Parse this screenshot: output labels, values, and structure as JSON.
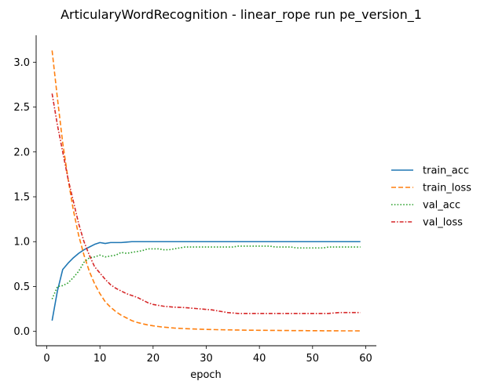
{
  "chart_data": {
    "type": "line",
    "title": "ArticularyWordRecognition - linear_rope run pe_version_1",
    "xlabel": "epoch",
    "ylabel": "",
    "xlim": [
      -2.0,
      62.0
    ],
    "ylim": [
      -0.16,
      3.3
    ],
    "xticks": [
      0,
      10,
      20,
      30,
      40,
      50,
      60
    ],
    "yticks": [
      0.0,
      0.5,
      1.0,
      1.5,
      2.0,
      2.5,
      3.0
    ],
    "xtick_labels": [
      "0",
      "10",
      "20",
      "30",
      "40",
      "50",
      "60"
    ],
    "ytick_labels": [
      "0.0",
      "0.5",
      "1.0",
      "1.5",
      "2.0",
      "2.5",
      "3.0"
    ],
    "legend_position": "right",
    "grid": false,
    "series": [
      {
        "name": "train_acc",
        "color": "#1f77b4",
        "dash": "solid",
        "x": [
          1,
          2,
          3,
          4,
          5,
          6,
          7,
          8,
          9,
          10,
          11,
          12,
          13,
          14,
          15,
          16,
          17,
          18,
          19,
          20,
          21,
          22,
          23,
          24,
          25,
          26,
          27,
          28,
          29,
          30,
          31,
          32,
          33,
          34,
          35,
          36,
          37,
          38,
          39,
          40,
          41,
          42,
          43,
          44,
          45,
          46,
          47,
          48,
          49,
          50,
          51,
          52,
          53,
          54,
          55,
          56,
          57,
          58,
          59
        ],
        "values": [
          0.12,
          0.45,
          0.69,
          0.76,
          0.82,
          0.87,
          0.91,
          0.94,
          0.97,
          0.99,
          0.98,
          0.99,
          0.99,
          0.99,
          0.995,
          1.0,
          1.0,
          1.0,
          1.0,
          1.0,
          1.0,
          1.0,
          1.0,
          1.0,
          1.0,
          1.0,
          1.0,
          1.0,
          1.0,
          1.0,
          1.0,
          1.0,
          1.0,
          1.0,
          1.0,
          1.0,
          1.0,
          1.0,
          1.0,
          1.0,
          1.0,
          1.0,
          1.0,
          1.0,
          1.0,
          1.0,
          1.0,
          1.0,
          1.0,
          1.0,
          1.0,
          1.0,
          1.0,
          1.0,
          1.0,
          1.0,
          1.0,
          1.0,
          1.0
        ]
      },
      {
        "name": "train_loss",
        "color": "#ff7f0e",
        "dash": "dashed",
        "x": [
          1,
          2,
          3,
          4,
          5,
          6,
          7,
          8,
          9,
          10,
          11,
          12,
          13,
          14,
          15,
          16,
          17,
          18,
          19,
          20,
          21,
          22,
          23,
          24,
          25,
          26,
          27,
          28,
          29,
          30,
          31,
          32,
          33,
          34,
          35,
          36,
          37,
          38,
          39,
          40,
          41,
          42,
          43,
          44,
          45,
          46,
          47,
          48,
          49,
          50,
          51,
          52,
          53,
          54,
          55,
          56,
          57,
          58,
          59
        ],
        "values": [
          3.13,
          2.6,
          2.1,
          1.7,
          1.35,
          1.07,
          0.85,
          0.67,
          0.53,
          0.42,
          0.33,
          0.27,
          0.22,
          0.18,
          0.15,
          0.12,
          0.1,
          0.085,
          0.072,
          0.062,
          0.054,
          0.047,
          0.042,
          0.037,
          0.034,
          0.031,
          0.028,
          0.026,
          0.024,
          0.022,
          0.021,
          0.019,
          0.018,
          0.017,
          0.016,
          0.015,
          0.014,
          0.013,
          0.013,
          0.012,
          0.012,
          0.011,
          0.011,
          0.01,
          0.01,
          0.009,
          0.009,
          0.009,
          0.008,
          0.008,
          0.008,
          0.007,
          0.007,
          0.007,
          0.006,
          0.006,
          0.006,
          0.006,
          0.005
        ]
      },
      {
        "name": "val_acc",
        "color": "#2ca02c",
        "dash": "dotted",
        "x": [
          1,
          2,
          3,
          4,
          5,
          6,
          7,
          8,
          9,
          10,
          11,
          12,
          13,
          14,
          15,
          16,
          17,
          18,
          19,
          20,
          21,
          22,
          23,
          24,
          25,
          26,
          27,
          28,
          29,
          30,
          31,
          32,
          33,
          34,
          35,
          36,
          37,
          38,
          39,
          40,
          41,
          42,
          43,
          44,
          45,
          46,
          47,
          48,
          49,
          50,
          51,
          52,
          53,
          54,
          55,
          56,
          57,
          58,
          59
        ],
        "values": [
          0.36,
          0.5,
          0.51,
          0.54,
          0.6,
          0.67,
          0.77,
          0.82,
          0.83,
          0.85,
          0.83,
          0.84,
          0.85,
          0.88,
          0.87,
          0.88,
          0.89,
          0.9,
          0.92,
          0.92,
          0.92,
          0.91,
          0.91,
          0.92,
          0.93,
          0.94,
          0.94,
          0.94,
          0.94,
          0.94,
          0.94,
          0.94,
          0.94,
          0.94,
          0.94,
          0.95,
          0.95,
          0.95,
          0.95,
          0.95,
          0.95,
          0.95,
          0.94,
          0.94,
          0.94,
          0.94,
          0.93,
          0.93,
          0.93,
          0.93,
          0.93,
          0.93,
          0.94,
          0.94,
          0.94,
          0.94,
          0.94,
          0.94,
          0.94
        ]
      },
      {
        "name": "val_loss",
        "color": "#d62728",
        "dash": "dashdot",
        "x": [
          1,
          2,
          3,
          4,
          5,
          6,
          7,
          8,
          9,
          10,
          11,
          12,
          13,
          14,
          15,
          16,
          17,
          18,
          19,
          20,
          21,
          22,
          23,
          24,
          25,
          26,
          27,
          28,
          29,
          30,
          31,
          32,
          33,
          34,
          35,
          36,
          37,
          38,
          39,
          40,
          41,
          42,
          43,
          44,
          45,
          46,
          47,
          48,
          49,
          50,
          51,
          52,
          53,
          54,
          55,
          56,
          57,
          58,
          59
        ],
        "values": [
          2.65,
          2.3,
          2.0,
          1.7,
          1.45,
          1.2,
          1.0,
          0.85,
          0.72,
          0.65,
          0.58,
          0.52,
          0.48,
          0.45,
          0.42,
          0.4,
          0.38,
          0.35,
          0.32,
          0.3,
          0.29,
          0.28,
          0.275,
          0.27,
          0.268,
          0.265,
          0.26,
          0.255,
          0.25,
          0.245,
          0.24,
          0.23,
          0.22,
          0.21,
          0.205,
          0.2,
          0.2,
          0.2,
          0.2,
          0.2,
          0.2,
          0.2,
          0.2,
          0.2,
          0.2,
          0.2,
          0.2,
          0.2,
          0.2,
          0.2,
          0.2,
          0.2,
          0.2,
          0.205,
          0.21,
          0.21,
          0.21,
          0.21,
          0.21
        ]
      }
    ]
  }
}
